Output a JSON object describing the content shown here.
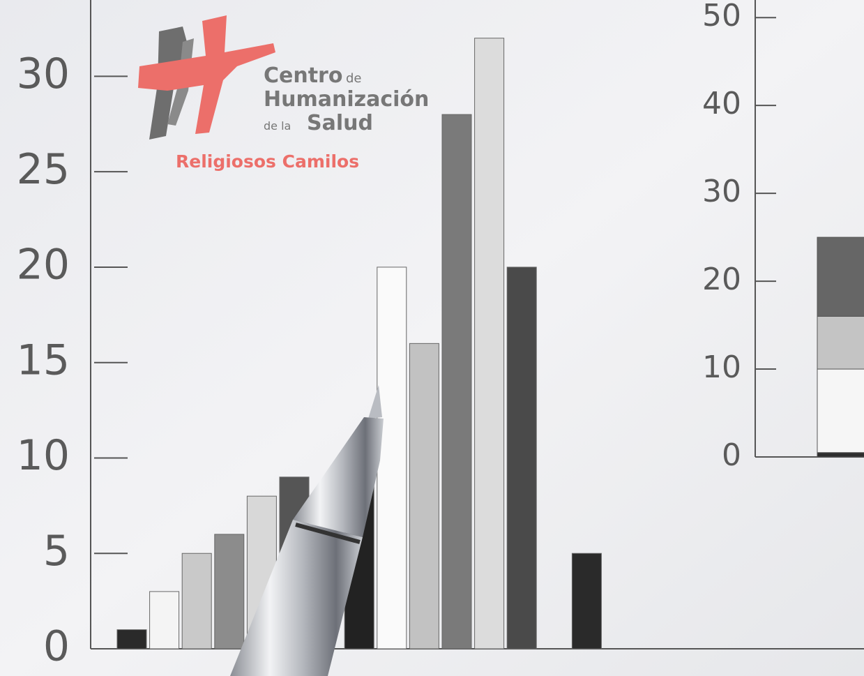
{
  "chart_data": [
    {
      "type": "bar",
      "categories": [
        null,
        null,
        null,
        null,
        null,
        null,
        null,
        null,
        null,
        null,
        null,
        null,
        null,
        null,
        null
      ],
      "values": [
        1,
        3,
        5,
        6,
        8,
        9,
        null,
        10,
        20,
        16,
        28,
        32,
        20,
        null,
        5
      ],
      "colors": [
        "#2a2a2a",
        "#f4f4f4",
        "#c9c9c9",
        "#8c8c8c",
        "#d8d8d8",
        "#555555",
        null,
        "#222222",
        "#fafafa",
        "#c2c2c2",
        "#7a7a7a",
        "#dcdcdc",
        "#4a4a4a",
        null,
        "#2a2a2a"
      ],
      "ylim": [
        0,
        34
      ],
      "yticks": [
        0,
        5,
        10,
        15,
        20,
        25,
        30
      ]
    },
    {
      "type": "stacked-bar",
      "categories": [
        null
      ],
      "series": [
        {
          "color": "#2e2e2e",
          "values": [
            0.5
          ]
        },
        {
          "color": "#f6f6f6",
          "values": [
            9.5
          ]
        },
        {
          "color": "#c4c4c4",
          "values": [
            6
          ]
        },
        {
          "color": "#666666",
          "values": [
            9
          ]
        }
      ],
      "ylim": [
        0,
        52
      ],
      "yticks": [
        0,
        10,
        20,
        30,
        40,
        50
      ]
    }
  ],
  "logo": {
    "line1": "Centro",
    "line1b": "de",
    "line2": "Humanización",
    "line3a": "de la",
    "line3b": "Salud",
    "tagline": "Religiosos Camilos"
  }
}
